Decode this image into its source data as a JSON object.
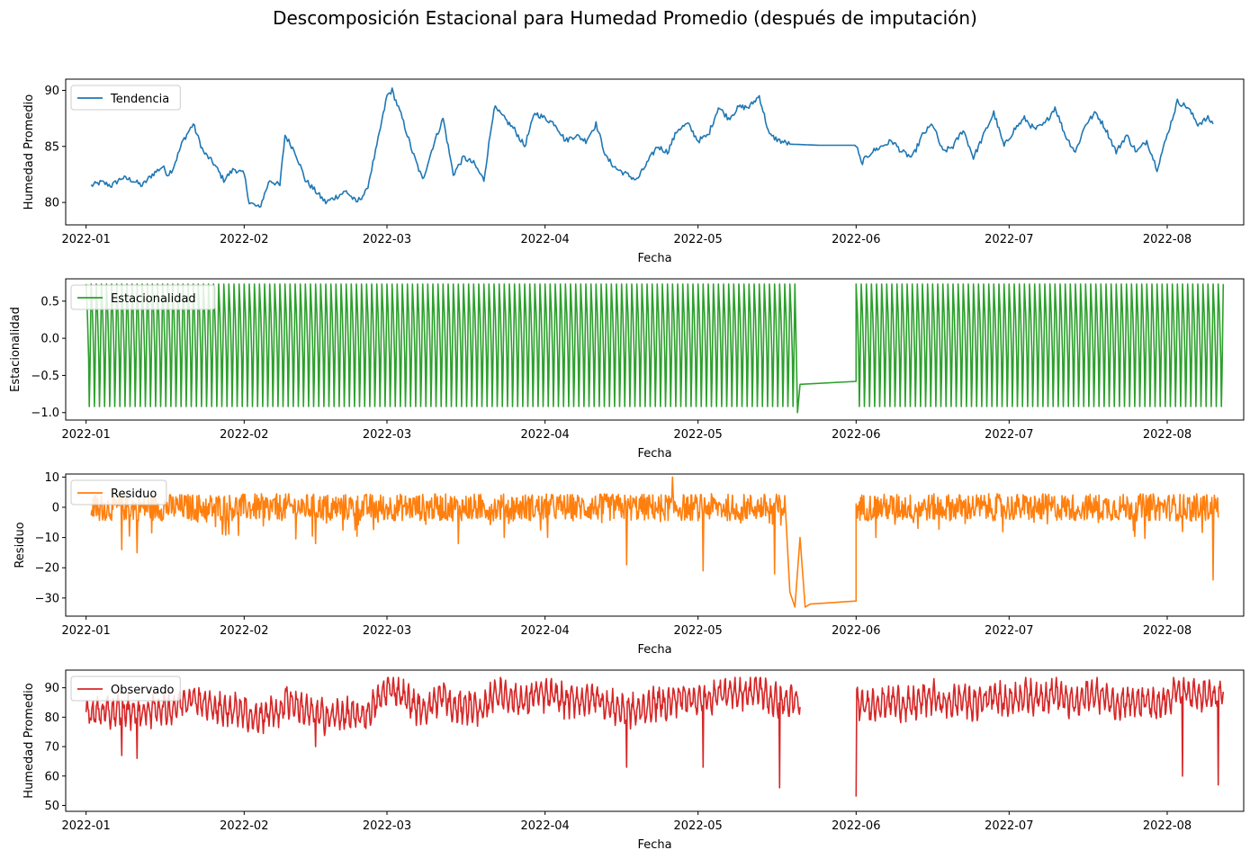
{
  "figure": {
    "title": "Descomposición Estacional para Humedad Promedio (después de imputación)"
  },
  "chart_data": [
    {
      "type": "line",
      "ylabel": "Humedad Promedio",
      "xlabel": "Fecha",
      "legend": "Tendencia",
      "legend_position": "upper-left",
      "color": "#1f77b4",
      "ylim": [
        78,
        91
      ],
      "yticks": [
        80,
        85,
        90
      ],
      "xlim": [
        "2021-12-28",
        "2022-08-16"
      ],
      "xticks": [
        "2022-01",
        "2022-02",
        "2022-03",
        "2022-04",
        "2022-05",
        "2022-06",
        "2022-07",
        "2022-08"
      ],
      "series": [
        {
          "name": "Tendencia",
          "x": [
            "2022-01-02",
            "2022-01-04",
            "2022-01-06",
            "2022-01-08",
            "2022-01-10",
            "2022-01-12",
            "2022-01-14",
            "2022-01-16",
            "2022-01-17",
            "2022-01-18",
            "2022-01-20",
            "2022-01-22",
            "2022-01-24",
            "2022-01-26",
            "2022-01-28",
            "2022-01-30",
            "2022-02-01",
            "2022-02-02",
            "2022-02-04",
            "2022-02-06",
            "2022-02-08",
            "2022-02-09",
            "2022-02-11",
            "2022-02-13",
            "2022-02-15",
            "2022-02-17",
            "2022-02-19",
            "2022-02-21",
            "2022-02-23",
            "2022-02-25",
            "2022-02-27",
            "2022-03-01",
            "2022-03-02",
            "2022-03-04",
            "2022-03-06",
            "2022-03-08",
            "2022-03-10",
            "2022-03-12",
            "2022-03-14",
            "2022-03-16",
            "2022-03-18",
            "2022-03-20",
            "2022-03-22",
            "2022-03-24",
            "2022-03-26",
            "2022-03-28",
            "2022-03-30",
            "2022-04-01",
            "2022-04-03",
            "2022-04-05",
            "2022-04-07",
            "2022-04-09",
            "2022-04-11",
            "2022-04-13",
            "2022-04-15",
            "2022-04-17",
            "2022-04-19",
            "2022-04-21",
            "2022-04-23",
            "2022-04-25",
            "2022-04-27",
            "2022-04-29",
            "2022-05-01",
            "2022-05-03",
            "2022-05-05",
            "2022-05-07",
            "2022-05-09",
            "2022-05-11",
            "2022-05-13",
            "2022-05-15",
            "2022-05-17",
            "2022-05-19",
            "2022-05-25",
            "2022-06-01",
            "2022-06-02",
            "2022-06-04",
            "2022-06-06",
            "2022-06-08",
            "2022-06-10",
            "2022-06-12",
            "2022-06-14",
            "2022-06-16",
            "2022-06-18",
            "2022-06-20",
            "2022-06-22",
            "2022-06-24",
            "2022-06-26",
            "2022-06-28",
            "2022-06-30",
            "2022-07-02",
            "2022-07-04",
            "2022-07-06",
            "2022-07-08",
            "2022-07-10",
            "2022-07-12",
            "2022-07-14",
            "2022-07-16",
            "2022-07-18",
            "2022-07-20",
            "2022-07-22",
            "2022-07-24",
            "2022-07-26",
            "2022-07-28",
            "2022-07-30",
            "2022-08-01",
            "2022-08-03",
            "2022-08-05",
            "2022-08-07",
            "2022-08-09",
            "2022-08-10"
          ],
          "values": [
            81.5,
            81.8,
            81.5,
            82.2,
            82.0,
            81.5,
            82.5,
            83.2,
            82.5,
            83.0,
            85.5,
            87.0,
            84.5,
            83.5,
            82.0,
            83.0,
            82.5,
            80.0,
            79.5,
            82.0,
            81.5,
            86.0,
            84.5,
            82.0,
            81.0,
            80.0,
            80.5,
            81.0,
            80.0,
            81.0,
            85.0,
            89.5,
            90.0,
            87.5,
            84.5,
            82.0,
            85.0,
            87.5,
            82.5,
            84.0,
            83.5,
            82.0,
            88.5,
            87.5,
            86.5,
            85.0,
            88.0,
            87.5,
            87.0,
            85.5,
            86.0,
            85.5,
            87.0,
            84.0,
            83.0,
            82.5,
            82.0,
            83.5,
            85.0,
            84.5,
            86.5,
            87.0,
            85.5,
            86.0,
            88.5,
            87.5,
            88.5,
            88.5,
            89.5,
            86.0,
            85.5,
            85.2,
            85.1,
            85.1,
            83.5,
            84.5,
            85.0,
            85.5,
            84.5,
            84.0,
            86.0,
            87.0,
            84.5,
            85.0,
            86.5,
            84.0,
            86.0,
            88.0,
            85.0,
            86.5,
            87.5,
            86.5,
            87.0,
            88.5,
            86.0,
            84.5,
            87.0,
            88.0,
            86.5,
            84.5,
            86.0,
            84.5,
            85.5,
            83.0,
            86.0,
            89.0,
            88.5,
            87.0,
            87.5,
            87.0
          ]
        }
      ]
    },
    {
      "type": "line",
      "ylabel": "Estacionalidad",
      "xlabel": "Fecha",
      "legend": "Estacionalidad",
      "legend_position": "upper-left",
      "color": "#2ca02c",
      "ylim": [
        -1.1,
        0.8
      ],
      "yticks": [
        -1.0,
        -0.5,
        0.0,
        0.5
      ],
      "yticklabels": [
        "−1.0",
        "−0.5",
        "0.0",
        "0.5"
      ],
      "xlim": [
        "2021-12-28",
        "2022-08-16"
      ],
      "xticks": [
        "2022-01",
        "2022-02",
        "2022-03",
        "2022-04",
        "2022-05",
        "2022-06",
        "2022-07",
        "2022-08"
      ],
      "series": [
        {
          "name": "Estacionalidad",
          "pattern": "daily cycle between -1.0 and 0.73",
          "cycle_range": [
            -1.0,
            0.73
          ],
          "cycle_period_days": 1,
          "gap": {
            "start": "2022-05-20",
            "end": "2022-06-01",
            "values": [
              -0.62,
              -0.58
            ]
          },
          "start": "2022-01-01",
          "end": "2022-08-12"
        }
      ]
    },
    {
      "type": "line",
      "ylabel": "Residuo",
      "xlabel": "Fecha",
      "legend": "Residuo",
      "legend_position": "upper-left",
      "color": "#ff7f0e",
      "ylim": [
        -36,
        11
      ],
      "yticks": [
        -30,
        -20,
        -10,
        0,
        10
      ],
      "yticklabels": [
        "−30",
        "−20",
        "−10",
        "0",
        "10"
      ],
      "xlim": [
        "2021-12-28",
        "2022-08-16"
      ],
      "xticks": [
        "2022-01",
        "2022-02",
        "2022-03",
        "2022-04",
        "2022-05",
        "2022-06",
        "2022-07",
        "2022-08"
      ],
      "series": [
        {
          "name": "Residuo",
          "pattern": "noise around 0, mostly within [-10, 7]",
          "spikes": [
            [
              "2022-01-08",
              -14
            ],
            [
              "2022-01-11",
              -15
            ],
            [
              "2022-02-15",
              -12
            ],
            [
              "2022-03-15",
              -12
            ],
            [
              "2022-04-17",
              -19
            ],
            [
              "2022-04-26",
              10
            ],
            [
              "2022-05-02",
              -21
            ],
            [
              "2022-05-16",
              -22
            ],
            [
              "2022-08-10",
              -24
            ]
          ],
          "gap": {
            "start": "2022-05-18",
            "end": "2022-06-01",
            "values": [
              -28,
              -33,
              -32,
              -31
            ]
          },
          "start": "2022-01-02",
          "end": "2022-08-11"
        }
      ]
    },
    {
      "type": "line",
      "ylabel": "Humedad Promedio",
      "xlabel": "Fecha",
      "legend": "Observado",
      "legend_position": "upper-left",
      "color": "#d62728",
      "ylim": [
        48,
        96
      ],
      "yticks": [
        50,
        60,
        70,
        80,
        90
      ],
      "xlim": [
        "2021-12-28",
        "2022-08-16"
      ],
      "xticks": [
        "2022-01",
        "2022-02",
        "2022-03",
        "2022-04",
        "2022-05",
        "2022-06",
        "2022-07",
        "2022-08"
      ],
      "series": [
        {
          "name": "Observado",
          "pattern": "trend plus daily cycle with noise",
          "spikes": [
            [
              "2022-01-08",
              67
            ],
            [
              "2022-01-11",
              66
            ],
            [
              "2022-02-15",
              70
            ],
            [
              "2022-04-17",
              63
            ],
            [
              "2022-05-02",
              63
            ],
            [
              "2022-05-17",
              56
            ],
            [
              "2022-06-01",
              53
            ],
            [
              "2022-08-04",
              60
            ],
            [
              "2022-08-11",
              57
            ]
          ],
          "missing": {
            "start": "2022-05-21",
            "end": "2022-06-01"
          },
          "start": "2022-01-01",
          "end": "2022-08-12"
        }
      ]
    }
  ]
}
